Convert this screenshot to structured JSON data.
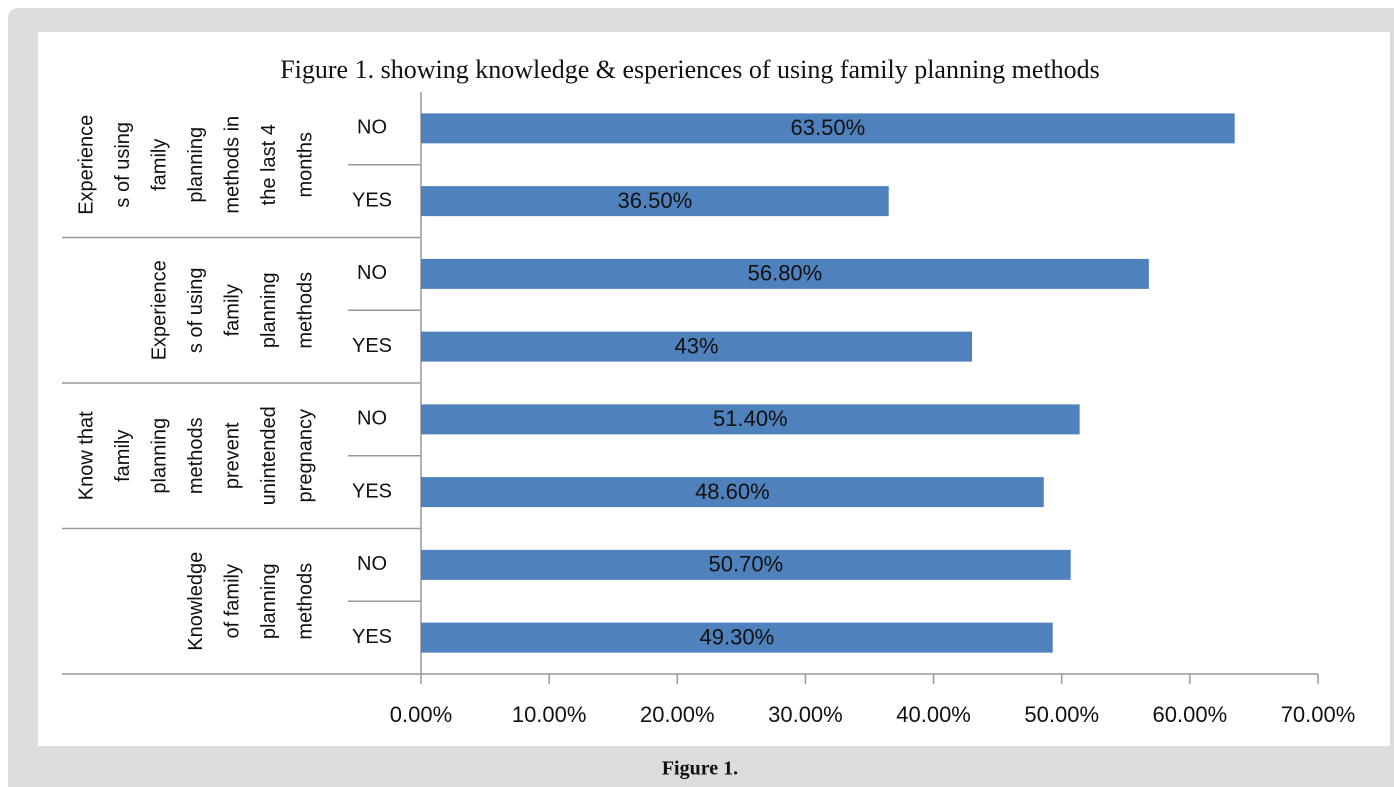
{
  "chart_data": {
    "type": "bar",
    "orientation": "horizontal",
    "title": "Figure 1. showing knowledge & esperiences of using family planning methods",
    "groups": [
      {
        "lines": [
          "Experience",
          "s of using",
          "family",
          "planning",
          "methods in",
          "the last 4",
          "months"
        ],
        "size": 2
      },
      {
        "lines": [
          "Experience",
          "s of using",
          "family",
          "planning",
          "methods"
        ],
        "size": 2
      },
      {
        "lines": [
          "Know that",
          "family",
          "planning",
          "methods",
          "prevent",
          "unintended",
          "pregnancy"
        ],
        "size": 2
      },
      {
        "lines": [
          "Knowledge",
          "of family",
          "planning",
          "methods"
        ],
        "size": 2
      }
    ],
    "categories": [
      "NO",
      "YES",
      "NO",
      "YES",
      "NO",
      "YES",
      "NO",
      "YES"
    ],
    "values": [
      63.5,
      36.5,
      56.8,
      43,
      51.4,
      48.6,
      50.7,
      49.3
    ],
    "value_labels": [
      "63.50%",
      "36.50%",
      "56.80%",
      "43%",
      "51.40%",
      "48.60%",
      "50.70%",
      "49.30%"
    ],
    "color": "#4f81bd",
    "xlim": [
      0,
      70
    ],
    "xticks": [
      {
        "value": 0,
        "label": "0.00%"
      },
      {
        "value": 10,
        "label": "10.00%"
      },
      {
        "value": 20,
        "label": "20.00%"
      },
      {
        "value": 30,
        "label": "30.00%"
      },
      {
        "value": 40,
        "label": "40.00%"
      },
      {
        "value": 50,
        "label": "50.00%"
      },
      {
        "value": 60,
        "label": "60.00%"
      },
      {
        "value": 70,
        "label": "70.00%"
      }
    ]
  },
  "caption": "Figure 1."
}
